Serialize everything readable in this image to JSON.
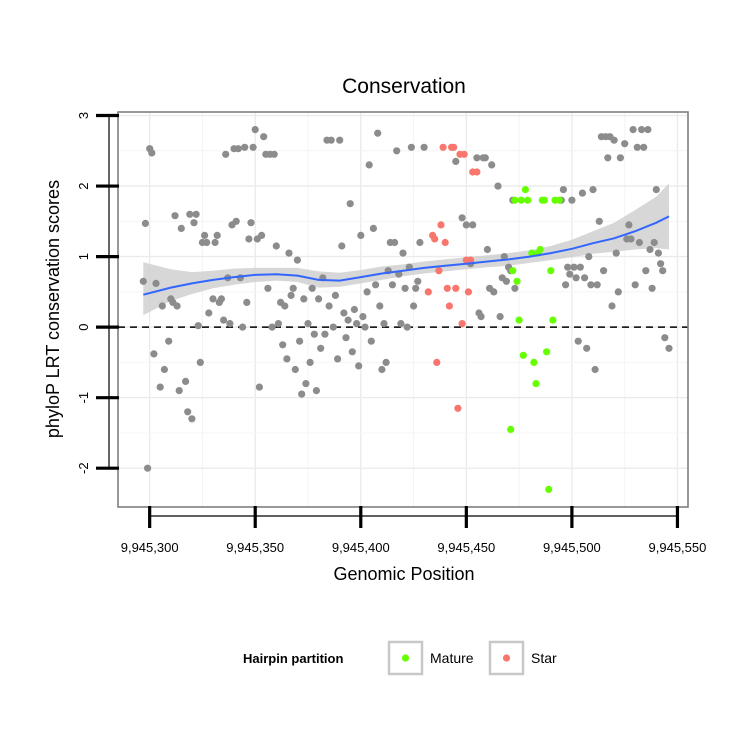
{
  "chart_data": {
    "type": "scatter",
    "title": "Conservation",
    "xlabel": "Genomic Position",
    "ylabel": "phyloP LRT conservation scores",
    "xlim": [
      9945285,
      9945555
    ],
    "ylim": [
      -2.55,
      3.05
    ],
    "x_ticks": [
      9945300,
      9945350,
      9945400,
      9945450,
      9945500,
      9945550
    ],
    "x_tick_labels": [
      "9,945,300",
      "9,945,350",
      "9,945,400",
      "9,945,450",
      "9,945,500",
      "9,945,550"
    ],
    "y_ticks": [
      -2,
      -1,
      0,
      1,
      2,
      3
    ],
    "y_tick_labels": [
      "-2",
      "-1",
      "0",
      "1",
      "2",
      "3"
    ],
    "reference_line": {
      "y": 0,
      "style": "dashed"
    },
    "legend": {
      "title": "Hairpin partition",
      "position": "bottom",
      "entries": [
        {
          "label": "Mature",
          "color": "#66ff00"
        },
        {
          "label": "Star",
          "color": "#f8766d"
        }
      ]
    },
    "colors": {
      "other": "#8c8c8c",
      "mature": "#66ff00",
      "star": "#f8766d",
      "smooth_line": "#3366ff",
      "confidence_band": "#d0d0d0"
    },
    "smooth": {
      "x": [
        9945297,
        9945310,
        9945320,
        9945330,
        9945340,
        9945350,
        9945360,
        9945370,
        9945380,
        9945390,
        9945400,
        9945410,
        9945420,
        9945430,
        9945440,
        9945450,
        9945460,
        9945470,
        9945480,
        9945490,
        9945500,
        9945510,
        9945520,
        9945530,
        9945540,
        9945546
      ],
      "y": [
        0.46,
        0.56,
        0.62,
        0.67,
        0.71,
        0.74,
        0.75,
        0.73,
        0.67,
        0.66,
        0.71,
        0.76,
        0.8,
        0.84,
        0.87,
        0.9,
        0.93,
        0.96,
        1.0,
        1.05,
        1.11,
        1.19,
        1.26,
        1.36,
        1.48,
        1.57
      ],
      "lower": [
        0.17,
        0.37,
        0.47,
        0.55,
        0.6,
        0.64,
        0.66,
        0.64,
        0.56,
        0.57,
        0.62,
        0.67,
        0.72,
        0.76,
        0.79,
        0.82,
        0.85,
        0.87,
        0.91,
        0.95,
        0.99,
        1.04,
        1.07,
        1.1,
        1.12,
        1.1
      ],
      "upper": [
        0.92,
        0.82,
        0.78,
        0.8,
        0.83,
        0.84,
        0.84,
        0.84,
        0.79,
        0.77,
        0.81,
        0.86,
        0.89,
        0.93,
        0.96,
        0.99,
        1.02,
        1.05,
        1.09,
        1.15,
        1.24,
        1.36,
        1.48,
        1.66,
        1.85,
        2.04
      ]
    },
    "series": [
      {
        "name": "Other",
        "points": [
          [
            9945297,
            0.65
          ],
          [
            9945298,
            1.47
          ],
          [
            9945299,
            -2.0
          ],
          [
            9945300,
            2.53
          ],
          [
            9945301,
            2.47
          ],
          [
            9945302,
            -0.38
          ],
          [
            9945303,
            0.62
          ],
          [
            9945305,
            -0.85
          ],
          [
            9945306,
            0.3
          ],
          [
            9945307,
            -0.6
          ],
          [
            9945309,
            -0.2
          ],
          [
            9945310,
            0.4
          ],
          [
            9945311,
            0.35
          ],
          [
            9945312,
            1.58
          ],
          [
            9945313,
            0.3
          ],
          [
            9945314,
            -0.9
          ],
          [
            9945315,
            1.4
          ],
          [
            9945317,
            -0.77
          ],
          [
            9945318,
            -1.2
          ],
          [
            9945319,
            1.6
          ],
          [
            9945320,
            -1.3
          ],
          [
            9945321,
            1.48
          ],
          [
            9945322,
            1.6
          ],
          [
            9945323,
            0.02
          ],
          [
            9945324,
            -0.5
          ],
          [
            9945325,
            1.2
          ],
          [
            9945326,
            1.3
          ],
          [
            9945327,
            1.2
          ],
          [
            9945328,
            0.2
          ],
          [
            9945330,
            0.4
          ],
          [
            9945331,
            1.2
          ],
          [
            9945332,
            1.3
          ],
          [
            9945333,
            0.35
          ],
          [
            9945334,
            0.4
          ],
          [
            9945335,
            0.1
          ],
          [
            9945336,
            2.45
          ],
          [
            9945337,
            0.7
          ],
          [
            9945338,
            0.05
          ],
          [
            9945339,
            1.45
          ],
          [
            9945340,
            2.53
          ],
          [
            9945341,
            1.5
          ],
          [
            9945342,
            2.53
          ],
          [
            9945343,
            0.7
          ],
          [
            9945344,
            0.0
          ],
          [
            9945345,
            2.55
          ],
          [
            9945346,
            0.35
          ],
          [
            9945347,
            1.25
          ],
          [
            9945348,
            1.48
          ],
          [
            9945349,
            2.55
          ],
          [
            9945350,
            2.8
          ],
          [
            9945351,
            1.25
          ],
          [
            9945352,
            -0.85
          ],
          [
            9945353,
            1.3
          ],
          [
            9945354,
            2.7
          ],
          [
            9945355,
            2.45
          ],
          [
            9945356,
            0.55
          ],
          [
            9945357,
            2.45
          ],
          [
            9945358,
            0.0
          ],
          [
            9945359,
            2.45
          ],
          [
            9945360,
            1.15
          ],
          [
            9945361,
            0.05
          ],
          [
            9945362,
            0.35
          ],
          [
            9945363,
            -0.25
          ],
          [
            9945364,
            0.3
          ],
          [
            9945365,
            -0.45
          ],
          [
            9945366,
            1.05
          ],
          [
            9945367,
            0.45
          ],
          [
            9945368,
            0.55
          ],
          [
            9945369,
            -0.6
          ],
          [
            9945370,
            0.95
          ],
          [
            9945371,
            -0.2
          ],
          [
            9945372,
            -0.95
          ],
          [
            9945373,
            0.4
          ],
          [
            9945374,
            -0.8
          ],
          [
            9945375,
            0.05
          ],
          [
            9945376,
            -0.5
          ],
          [
            9945377,
            0.55
          ],
          [
            9945378,
            -0.1
          ],
          [
            9945379,
            -0.9
          ],
          [
            9945380,
            0.4
          ],
          [
            9945381,
            -0.3
          ],
          [
            9945382,
            0.7
          ],
          [
            9945383,
            -0.1
          ],
          [
            9945384,
            2.65
          ],
          [
            9945385,
            0.3
          ],
          [
            9945386,
            2.65
          ],
          [
            9945387,
            0.0
          ],
          [
            9945388,
            0.45
          ],
          [
            9945389,
            -0.45
          ],
          [
            9945390,
            2.65
          ],
          [
            9945391,
            1.15
          ],
          [
            9945392,
            0.2
          ],
          [
            9945393,
            -0.15
          ],
          [
            9945394,
            0.1
          ],
          [
            9945395,
            1.75
          ],
          [
            9945396,
            -0.35
          ],
          [
            9945397,
            0.25
          ],
          [
            9945398,
            0.05
          ],
          [
            9945399,
            -0.55
          ],
          [
            9945400,
            1.3
          ],
          [
            9945401,
            0.15
          ],
          [
            9945402,
            0.0
          ],
          [
            9945403,
            0.5
          ],
          [
            9945404,
            2.3
          ],
          [
            9945405,
            -0.2
          ],
          [
            9945406,
            1.4
          ],
          [
            9945407,
            0.6
          ],
          [
            9945408,
            2.75
          ],
          [
            9945409,
            0.3
          ],
          [
            9945410,
            -0.6
          ],
          [
            9945411,
            0.05
          ],
          [
            9945412,
            -0.5
          ],
          [
            9945413,
            0.8
          ],
          [
            9945414,
            1.2
          ],
          [
            9945415,
            0.6
          ],
          [
            9945416,
            1.2
          ],
          [
            9945417,
            2.5
          ],
          [
            9945418,
            0.75
          ],
          [
            9945419,
            0.05
          ],
          [
            9945420,
            1.05
          ],
          [
            9945421,
            0.55
          ],
          [
            9945422,
            0.0
          ],
          [
            9945423,
            0.85
          ],
          [
            9945424,
            2.55
          ],
          [
            9945425,
            0.3
          ],
          [
            9945426,
            0.55
          ],
          [
            9945427,
            0.65
          ],
          [
            9945428,
            1.2
          ],
          [
            9945430,
            2.55
          ],
          [
            9945445,
            2.35
          ],
          [
            9945448,
            1.55
          ],
          [
            9945450,
            1.45
          ],
          [
            9945452,
            0.9
          ],
          [
            9945453,
            1.45
          ],
          [
            9945455,
            2.4
          ],
          [
            9945456,
            0.2
          ],
          [
            9945457,
            0.15
          ],
          [
            9945458,
            2.4
          ],
          [
            9945459,
            2.4
          ],
          [
            9945460,
            1.1
          ],
          [
            9945461,
            0.55
          ],
          [
            9945462,
            2.3
          ],
          [
            9945463,
            0.5
          ],
          [
            9945465,
            2.0
          ],
          [
            9945466,
            0.15
          ],
          [
            9945467,
            0.7
          ],
          [
            9945468,
            1.0
          ],
          [
            9945469,
            0.65
          ],
          [
            9945470,
            0.85
          ],
          [
            9945471,
            0.8
          ],
          [
            9945472,
            1.8
          ],
          [
            9945473,
            0.55
          ],
          [
            9945495,
            1.8
          ],
          [
            9945496,
            1.95
          ],
          [
            9945497,
            0.6
          ],
          [
            9945498,
            0.85
          ],
          [
            9945499,
            0.75
          ],
          [
            9945500,
            1.8
          ],
          [
            9945501,
            0.85
          ],
          [
            9945502,
            0.7
          ],
          [
            9945503,
            -0.2
          ],
          [
            9945504,
            0.85
          ],
          [
            9945505,
            1.9
          ],
          [
            9945506,
            0.7
          ],
          [
            9945507,
            -0.3
          ],
          [
            9945508,
            1.0
          ],
          [
            9945509,
            0.6
          ],
          [
            9945510,
            1.95
          ],
          [
            9945511,
            -0.6
          ],
          [
            9945512,
            0.6
          ],
          [
            9945513,
            1.5
          ],
          [
            9945514,
            2.7
          ],
          [
            9945515,
            0.8
          ],
          [
            9945516,
            2.7
          ],
          [
            9945517,
            2.4
          ],
          [
            9945518,
            2.7
          ],
          [
            9945519,
            0.3
          ],
          [
            9945520,
            2.65
          ],
          [
            9945521,
            1.05
          ],
          [
            9945522,
            0.5
          ],
          [
            9945523,
            2.4
          ],
          [
            9945525,
            2.6
          ],
          [
            9945526,
            1.25
          ],
          [
            9945527,
            1.45
          ],
          [
            9945528,
            1.25
          ],
          [
            9945529,
            2.8
          ],
          [
            9945530,
            0.6
          ],
          [
            9945531,
            2.55
          ],
          [
            9945532,
            1.2
          ],
          [
            9945533,
            2.8
          ],
          [
            9945534,
            2.55
          ],
          [
            9945535,
            0.8
          ],
          [
            9945536,
            2.8
          ],
          [
            9945537,
            1.1
          ],
          [
            9945538,
            0.55
          ],
          [
            9945539,
            1.2
          ],
          [
            9945540,
            1.95
          ],
          [
            9945541,
            1.05
          ],
          [
            9945542,
            0.9
          ],
          [
            9945543,
            0.8
          ],
          [
            9945544,
            -0.15
          ],
          [
            9945546,
            -0.3
          ]
        ]
      },
      {
        "name": "Mature",
        "points": [
          [
            9945471,
            -1.45
          ],
          [
            9945472,
            0.8
          ],
          [
            9945473,
            1.8
          ],
          [
            9945474,
            0.65
          ],
          [
            9945475,
            0.1
          ],
          [
            9945476,
            1.8
          ],
          [
            9945477,
            -0.4
          ],
          [
            9945478,
            1.95
          ],
          [
            9945479,
            1.8
          ],
          [
            9945481,
            1.05
          ],
          [
            9945482,
            -0.5
          ],
          [
            9945483,
            -0.8
          ],
          [
            9945484,
            1.05
          ],
          [
            9945485,
            1.1
          ],
          [
            9945486,
            1.8
          ],
          [
            9945487,
            1.8
          ],
          [
            9945488,
            -0.35
          ],
          [
            9945489,
            -2.3
          ],
          [
            9945490,
            0.8
          ],
          [
            9945491,
            0.1
          ],
          [
            9945492,
            1.8
          ],
          [
            9945494,
            1.8
          ]
        ]
      },
      {
        "name": "Star",
        "points": [
          [
            9945432,
            0.5
          ],
          [
            9945434,
            1.3
          ],
          [
            9945435,
            1.25
          ],
          [
            9945436,
            -0.5
          ],
          [
            9945437,
            0.8
          ],
          [
            9945438,
            1.45
          ],
          [
            9945439,
            2.55
          ],
          [
            9945440,
            1.2
          ],
          [
            9945441,
            0.55
          ],
          [
            9945442,
            0.3
          ],
          [
            9945443,
            2.55
          ],
          [
            9945444,
            2.55
          ],
          [
            9945445,
            0.55
          ],
          [
            9945446,
            -1.15
          ],
          [
            9945447,
            2.45
          ],
          [
            9945448,
            0.05
          ],
          [
            9945449,
            2.45
          ],
          [
            9945450,
            0.95
          ],
          [
            9945451,
            0.5
          ],
          [
            9945452,
            0.95
          ],
          [
            9945453,
            2.2
          ],
          [
            9945455,
            2.2
          ]
        ]
      }
    ]
  }
}
